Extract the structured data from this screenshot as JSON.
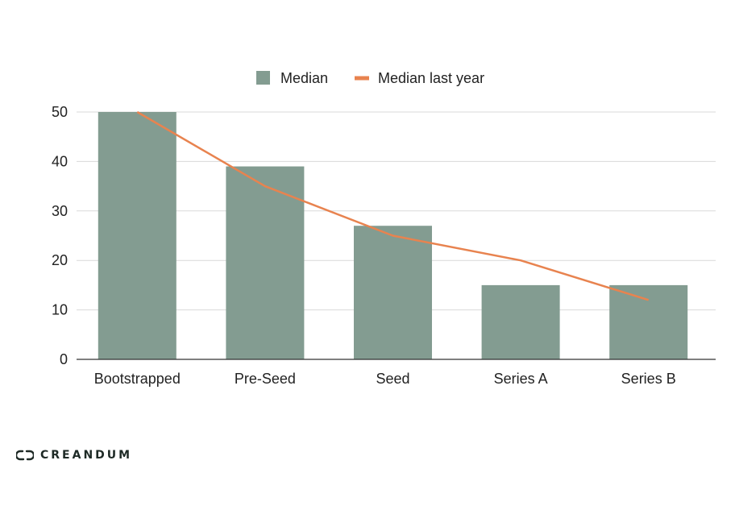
{
  "chart_data": {
    "type": "bar",
    "categories": [
      "Bootstrapped",
      "Pre-Seed",
      "Seed",
      "Series A",
      "Series B"
    ],
    "series": [
      {
        "name": "Median",
        "kind": "bar",
        "color": "#839c91",
        "values": [
          50,
          39,
          27,
          15,
          15
        ]
      },
      {
        "name": "Median last year",
        "kind": "line",
        "color": "#e8834f",
        "values": [
          50,
          35,
          25,
          20,
          12
        ]
      }
    ],
    "title": "",
    "xlabel": "",
    "ylabel": "",
    "ylim": [
      0,
      50
    ],
    "yticks": [
      0,
      10,
      20,
      30,
      40,
      50
    ],
    "grid": true,
    "legend_position": "top-center"
  },
  "brand": {
    "name": "CREANDUM",
    "logo_icon": "creandum-logo-icon"
  }
}
